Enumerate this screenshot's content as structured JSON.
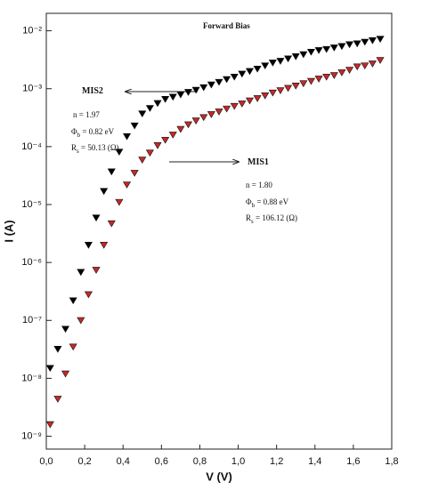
{
  "chart_data": {
    "type": "scatter",
    "x_label": "V (V)",
    "y_label": "I (A)",
    "log_y": true,
    "grid": false,
    "marker": "triangle-down",
    "xlim": [
      0,
      1.8
    ],
    "ylim": [
      6e-10,
      0.02
    ],
    "xticks": [
      {
        "value": 0,
        "label": "0,0"
      },
      {
        "value": 0.2,
        "label": "0,2"
      },
      {
        "value": 0.4,
        "label": "0,4"
      },
      {
        "value": 0.6,
        "label": "0,6"
      },
      {
        "value": 0.8,
        "label": "0,8"
      },
      {
        "value": 1.0,
        "label": "1,0"
      },
      {
        "value": 1.2,
        "label": "1,2"
      },
      {
        "value": 1.4,
        "label": "1,4"
      },
      {
        "value": 1.6,
        "label": "1,6"
      },
      {
        "value": 1.8,
        "label": "1,8"
      }
    ],
    "yticks": [
      {
        "value": 1e-09,
        "label": "10⁻⁹"
      },
      {
        "value": 1e-08,
        "label": "10⁻⁸"
      },
      {
        "value": 1e-07,
        "label": "10⁻⁷"
      },
      {
        "value": 1e-06,
        "label": "10⁻⁶"
      },
      {
        "value": 1e-05,
        "label": "10⁻⁵"
      },
      {
        "value": 0.0001,
        "label": "10⁻⁴"
      },
      {
        "value": 0.001,
        "label": "10⁻³"
      },
      {
        "value": 0.01,
        "label": "10⁻²"
      }
    ],
    "x": [
      0.02,
      0.06,
      0.1,
      0.14,
      0.18,
      0.22,
      0.26,
      0.3,
      0.34,
      0.38,
      0.42,
      0.46,
      0.5,
      0.54,
      0.58,
      0.62,
      0.66,
      0.7,
      0.74,
      0.78,
      0.82,
      0.86,
      0.9,
      0.94,
      0.98,
      1.02,
      1.06,
      1.1,
      1.14,
      1.18,
      1.22,
      1.26,
      1.3,
      1.34,
      1.38,
      1.42,
      1.46,
      1.5,
      1.54,
      1.58,
      1.62,
      1.66,
      1.7,
      1.74
    ],
    "series": [
      {
        "color": "#000000",
        "values": [
          1.5e-08,
          3.2e-08,
          7.1e-08,
          2.2e-07,
          6.8e-07,
          2e-06,
          5.9e-06,
          1.7e-05,
          3.7e-05,
          8.1e-05,
          0.00015,
          0.00023,
          0.00037,
          0.00046,
          0.00056,
          0.00066,
          0.00072,
          0.00079,
          0.00087,
          0.00095,
          0.00105,
          0.00117,
          0.0013,
          0.00145,
          0.0016,
          0.0018,
          0.002,
          0.0022,
          0.0025,
          0.0028,
          0.003,
          0.0033,
          0.0036,
          0.0039,
          0.0043,
          0.0046,
          0.0048,
          0.0051,
          0.0054,
          0.0058,
          0.006,
          0.0064,
          0.0068,
          0.0072
        ]
      },
      {
        "color": "#c62828",
        "values": [
          1.6e-09,
          4.4e-09,
          1.2e-08,
          3.5e-08,
          1e-07,
          2.8e-07,
          7.4e-07,
          2e-06,
          4.7e-06,
          1.1e-05,
          2.2e-05,
          3.5e-05,
          5.9e-05,
          7.8e-05,
          0.000105,
          0.00013,
          0.00016,
          0.0002,
          0.00024,
          0.00028,
          0.00032,
          0.00036,
          0.0004,
          0.00045,
          0.0005,
          0.00055,
          0.00062,
          0.00068,
          0.00076,
          0.00085,
          0.00093,
          0.00102,
          0.00112,
          0.00123,
          0.00135,
          0.00148,
          0.0016,
          0.0017,
          0.0019,
          0.0021,
          0.0024,
          0.0025,
          0.0027,
          0.0031
        ]
      }
    ],
    "annotations": [
      [
        {
          "text": "Forward Bias"
        }
      ],
      [
        {
          "text": "MIS2"
        }
      ],
      [
        {
          "text": "n = 1.97"
        }
      ],
      [
        {
          "text": "Φ"
        },
        {
          "sub": "b"
        },
        {
          "text": " = 0.82 eV"
        }
      ],
      [
        {
          "text": "R"
        },
        {
          "sub": "s"
        },
        {
          "text": " = 50.13 (Ω)"
        }
      ],
      [
        {
          "text": "MIS1"
        }
      ],
      [
        {
          "text": "n = 1.80"
        }
      ],
      [
        {
          "text": "Φ"
        },
        {
          "sub": "b"
        },
        {
          "text": " = 0.88 eV"
        }
      ],
      [
        {
          "text": "R"
        },
        {
          "sub": "s"
        },
        {
          "text": " = 106.12 (Ω)"
        }
      ]
    ]
  }
}
